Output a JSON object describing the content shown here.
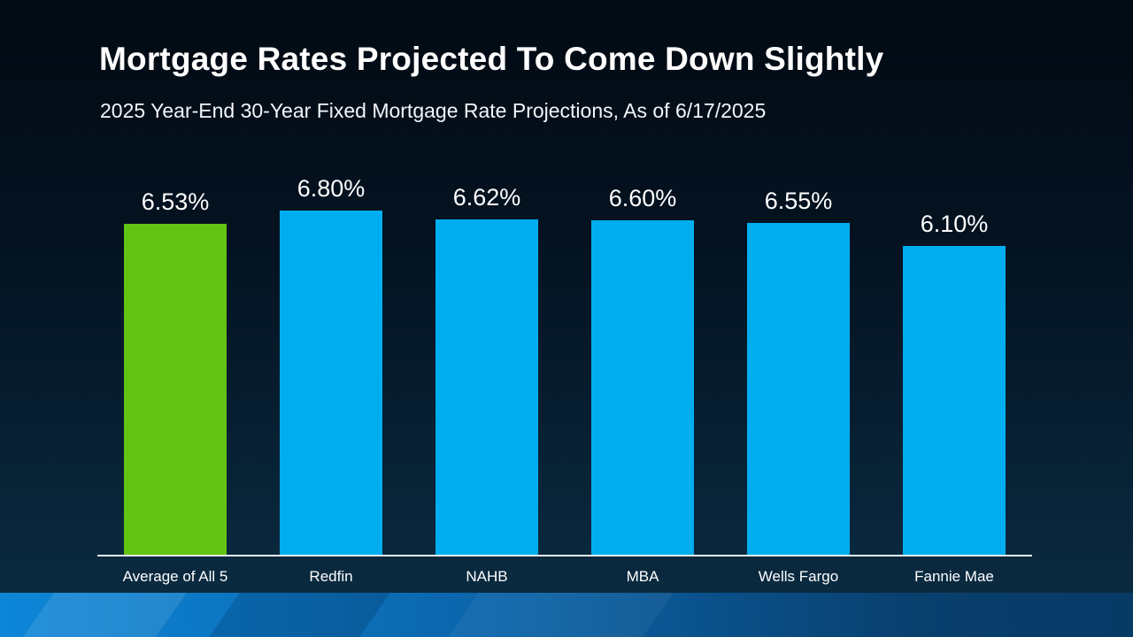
{
  "slide": {
    "title": "Mortgage Rates Projected To Come Down Slightly",
    "subtitle": "2025 Year-End 30-Year Fixed Mortgage Rate Projections, As of 6/17/2025"
  },
  "chart_data": {
    "type": "bar",
    "title": "Mortgage Rates Projected To Come Down Slightly",
    "subtitle": "2025 Year-End 30-Year Fixed Mortgage Rate Projections, As of 6/17/2025",
    "categories": [
      "Average of All 5",
      "Redfin",
      "NAHB",
      "MBA",
      "Wells Fargo",
      "Fannie Mae"
    ],
    "values": [
      6.53,
      6.8,
      6.62,
      6.6,
      6.55,
      6.1
    ],
    "value_labels": [
      "6.53%",
      "6.80%",
      "6.62%",
      "6.60%",
      "6.55%",
      "6.10%"
    ],
    "xlabel": "",
    "ylabel": "",
    "ylim": [
      0,
      6.8
    ],
    "grid": false,
    "legend": false,
    "bar_colors": [
      "#62c313",
      "#00aeef",
      "#00aeef",
      "#00aeef",
      "#00aeef",
      "#00aeef"
    ],
    "colors": {
      "highlight_bar": "#62c313",
      "default_bar": "#00aeef",
      "axis_line": "#e6ecf1",
      "text": "#ffffff",
      "background_top": "#020a12",
      "background_bottom": "#0c2d44",
      "accent_band_left": "#0d86d8",
      "accent_band_right": "#083a66"
    }
  }
}
